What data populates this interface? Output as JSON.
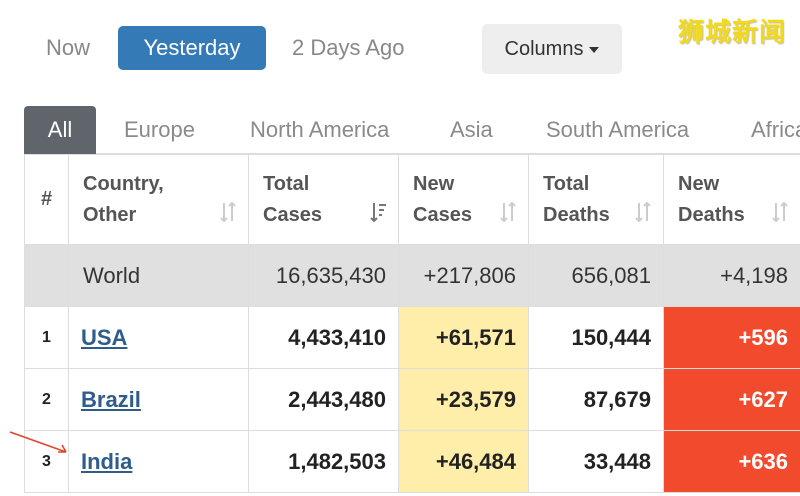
{
  "day_filter": {
    "now": "Now",
    "yesterday": "Yesterday",
    "two_days_ago": "2 Days Ago",
    "columns": "Columns"
  },
  "watermark": "狮城新闻",
  "region_tabs": [
    "All",
    "Europe",
    "North America",
    "Asia",
    "South America",
    "Africa"
  ],
  "table": {
    "headers": {
      "rank": "#",
      "country_line1": "Country,",
      "country_line2": "Other",
      "total_cases_line1": "Total",
      "total_cases_line2": "Cases",
      "new_cases_line1": "New",
      "new_cases_line2": "Cases",
      "total_deaths_line1": "Total",
      "total_deaths_line2": "Deaths",
      "new_deaths_line1": "New",
      "new_deaths_line2": "Deaths"
    },
    "world": {
      "name": "World",
      "total_cases": "16,635,430",
      "new_cases": "+217,806",
      "total_deaths": "656,081",
      "new_deaths": "+4,198"
    },
    "rows": [
      {
        "rank": "1",
        "country": "USA",
        "total_cases": "4,433,410",
        "new_cases": "+61,571",
        "total_deaths": "150,444",
        "new_deaths": "+596"
      },
      {
        "rank": "2",
        "country": "Brazil",
        "total_cases": "2,443,480",
        "new_cases": "+23,579",
        "total_deaths": "87,679",
        "new_deaths": "+627"
      },
      {
        "rank": "3",
        "country": "India",
        "total_cases": "1,482,503",
        "new_cases": "+46,484",
        "total_deaths": "33,448",
        "new_deaths": "+636"
      }
    ]
  },
  "colors": {
    "active_button": "#337ab7",
    "active_tab": "#60656b",
    "new_cases_highlight": "#ffeeaa",
    "new_deaths_highlight": "#f14a2c",
    "link": "#2f5c8a",
    "watermark": "#f2d91a"
  },
  "icons": {
    "sort_icon": "sort-arrows-icon",
    "sort_active_icon": "sort-descending-icon",
    "caret": "caret-down-icon",
    "annotation": "arrow-annotation-icon"
  }
}
